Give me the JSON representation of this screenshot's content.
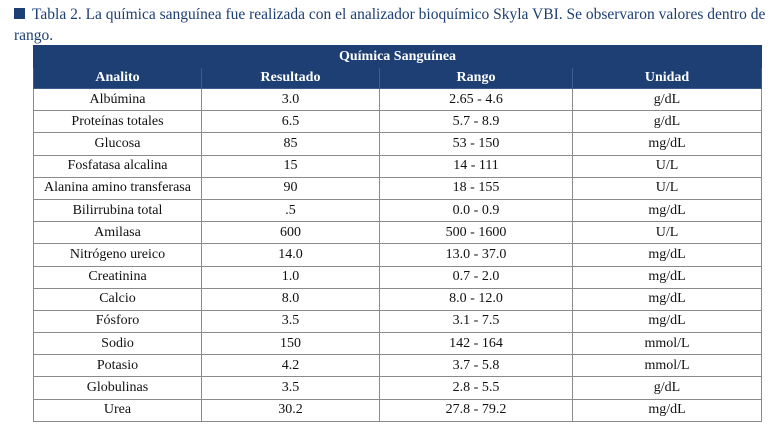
{
  "caption": "Tabla 2. La química sanguínea fue realizada con el analizador bioquímico Skyla VBI. Se observaron valores dentro de rango.",
  "table": {
    "title": "Química Sanguínea",
    "headers": [
      "Analito",
      "Resultado",
      "Rango",
      "Unidad"
    ],
    "rows": [
      [
        "Albúmina",
        "3.0",
        "2.65 - 4.6",
        "g/dL"
      ],
      [
        "Proteínas totales",
        "6.5",
        "5.7 - 8.9",
        "g/dL"
      ],
      [
        "Glucosa",
        "85",
        "53 - 150",
        "mg/dL"
      ],
      [
        "Fosfatasa alcalina",
        "15",
        "14 - 111",
        "U/L"
      ],
      [
        "Alanina amino transferasa",
        "90",
        "18 - 155",
        "U/L"
      ],
      [
        "Bilirrubina total",
        ".5",
        "0.0 - 0.9",
        "mg/dL"
      ],
      [
        "Amilasa",
        "600",
        "500 - 1600",
        "U/L"
      ],
      [
        "Nitrógeno ureico",
        "14.0",
        "13.0 - 37.0",
        "mg/dL"
      ],
      [
        "Creatinina",
        "1.0",
        "0.7 - 2.0",
        "mg/dL"
      ],
      [
        "Calcio",
        "8.0",
        "8.0 - 12.0",
        "mg/dL"
      ],
      [
        "Fósforo",
        "3.5",
        "3.1 - 7.5",
        "mg/dL"
      ],
      [
        "Sodio",
        "150",
        "142 - 164",
        "mmol/L"
      ],
      [
        "Potasio",
        "4.2",
        "3.7 - 5.8",
        "mmol/L"
      ],
      [
        "Globulinas",
        "3.5",
        "2.8 - 5.5",
        "g/dL"
      ],
      [
        "Urea",
        "30.2",
        "27.8 - 79.2",
        "mg/dL"
      ]
    ]
  },
  "colors": {
    "header_bg": "#1d3f73",
    "caption_text": "#1d3f73"
  }
}
